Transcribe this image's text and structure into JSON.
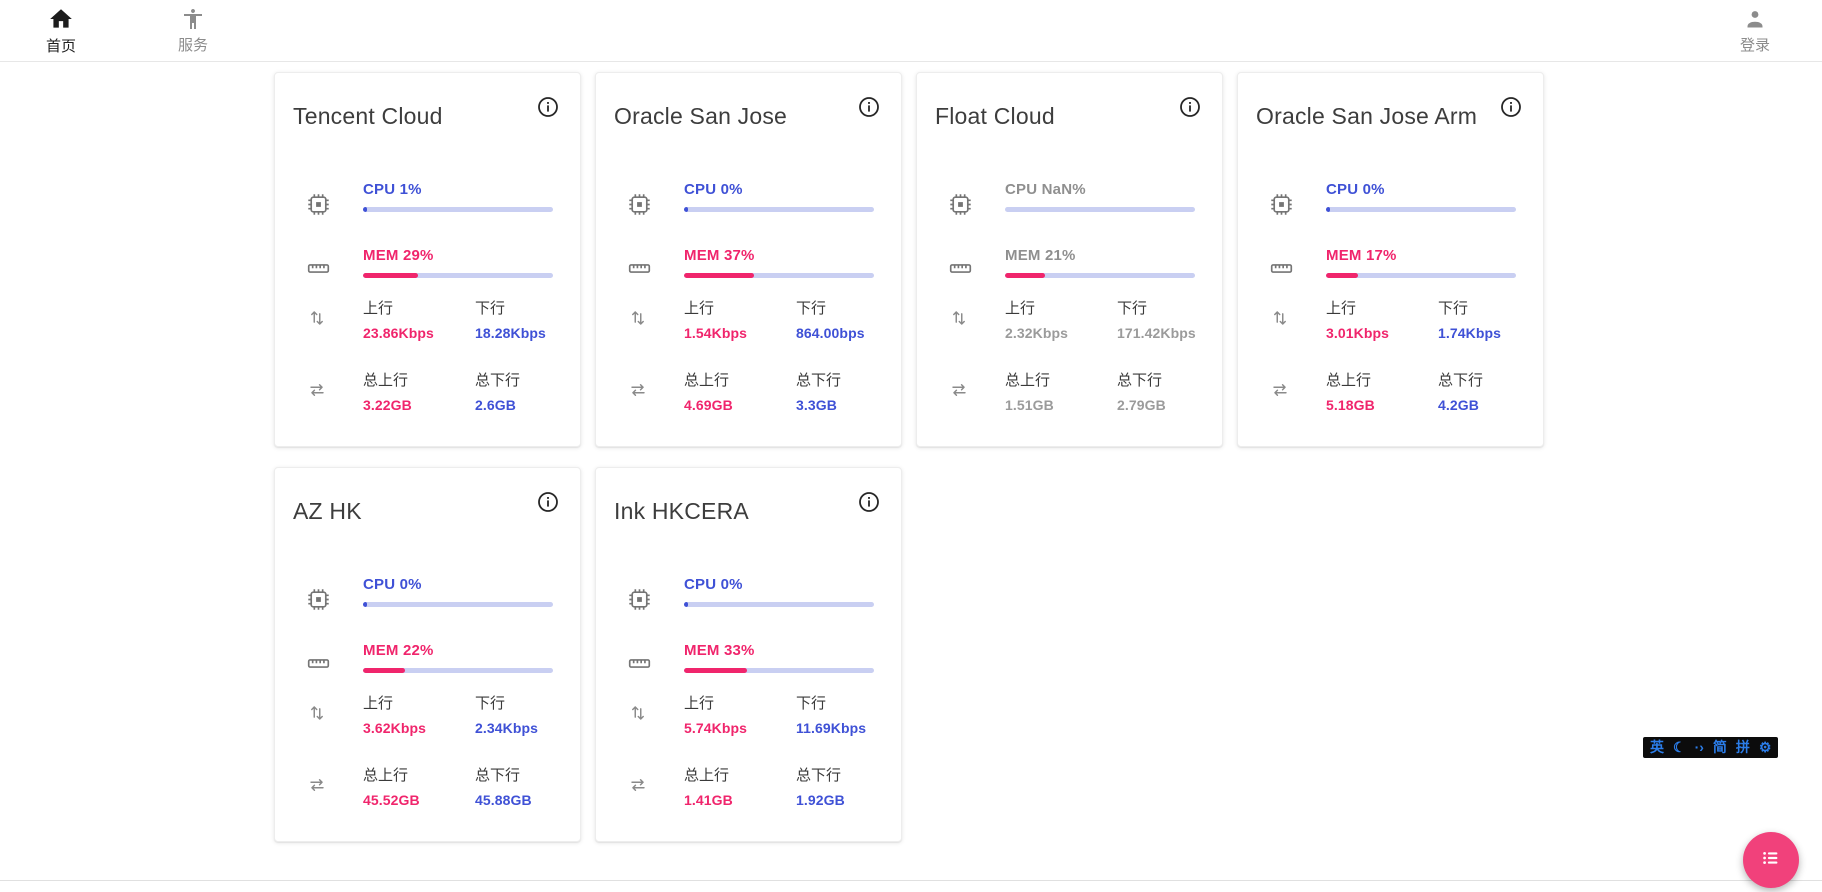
{
  "nav": {
    "home": {
      "label": "首页"
    },
    "services": {
      "label": "服务"
    },
    "login": {
      "label": "登录"
    }
  },
  "labels": {
    "upload": "上行",
    "download": "下行",
    "total_upload": "总上行",
    "total_download": "总下行"
  },
  "cards": [
    {
      "title": "Tencent Cloud",
      "cpu_text": "CPU 1%",
      "cpu_pct": 1,
      "mem_text": "MEM 29%",
      "mem_pct": 29,
      "upload": "23.86Kbps",
      "download": "18.28Kbps",
      "total_upload": "3.22GB",
      "total_download": "2.6GB",
      "muted": false
    },
    {
      "title": "Oracle San Jose",
      "cpu_text": "CPU 0%",
      "cpu_pct": 0,
      "mem_text": "MEM 37%",
      "mem_pct": 37,
      "upload": "1.54Kbps",
      "download": "864.00bps",
      "total_upload": "4.69GB",
      "total_download": "3.3GB",
      "muted": false
    },
    {
      "title": "Float Cloud",
      "cpu_text": "CPU NaN%",
      "cpu_pct": null,
      "mem_text": "MEM 21%",
      "mem_pct": 21,
      "upload": "2.32Kbps",
      "download": "171.42Kbps",
      "total_upload": "1.51GB",
      "total_download": "2.79GB",
      "muted": true
    },
    {
      "title": "Oracle San Jose Arm",
      "cpu_text": "CPU 0%",
      "cpu_pct": 0,
      "mem_text": "MEM 17%",
      "mem_pct": 17,
      "upload": "3.01Kbps",
      "download": "1.74Kbps",
      "total_upload": "5.18GB",
      "total_download": "4.2GB",
      "muted": false
    },
    {
      "title": "AZ HK",
      "cpu_text": "CPU 0%",
      "cpu_pct": 0,
      "mem_text": "MEM 22%",
      "mem_pct": 22,
      "upload": "3.62Kbps",
      "download": "2.34Kbps",
      "total_upload": "45.52GB",
      "total_download": "45.88GB",
      "muted": false
    },
    {
      "title": "Ink HKCERA",
      "cpu_text": "CPU 0%",
      "cpu_pct": 0,
      "mem_text": "MEM 33%",
      "mem_pct": 33,
      "upload": "5.74Kbps",
      "download": "11.69Kbps",
      "total_upload": "1.41GB",
      "total_download": "1.92GB",
      "muted": false
    }
  ],
  "ime_bar": {
    "items": [
      {
        "name": "ime-english-mode",
        "glyph": "英"
      },
      {
        "name": "ime-moon-icon",
        "glyph": "☾"
      },
      {
        "name": "ime-punctuation-icon",
        "glyph": "·›"
      },
      {
        "name": "ime-simplified-chinese",
        "glyph": "简"
      },
      {
        "name": "ime-pinyin-mode",
        "glyph": "拼"
      },
      {
        "name": "ime-settings-gear-icon",
        "glyph": "⚙"
      }
    ]
  },
  "colors": {
    "accent_blue": "#3f51d6",
    "accent_pink": "#f0256c",
    "bar_track": "#c9cff2",
    "muted_text": "#9b9b9b",
    "ime_icon_blue": "#2b7de9",
    "ime_background": "#0c0c0c",
    "fab_pink": "#f1417b"
  }
}
